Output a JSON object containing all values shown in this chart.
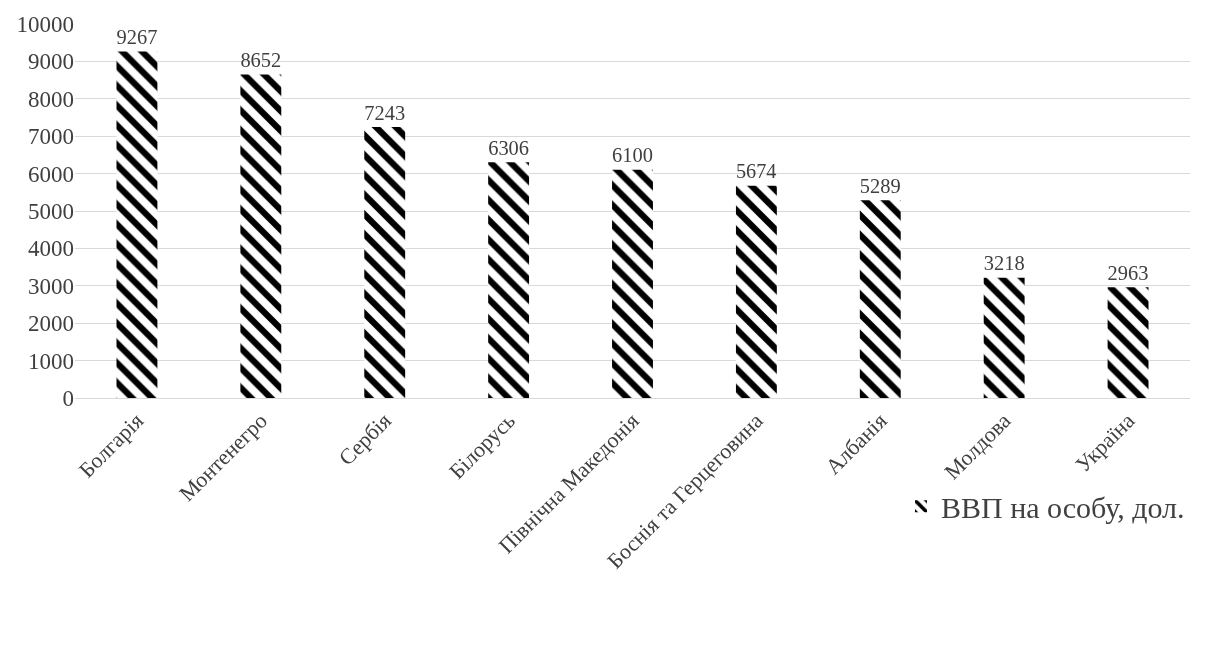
{
  "chart_data": {
    "type": "bar",
    "categories": [
      "Болгарія",
      "Монтенегро",
      "Сербія",
      "Білорусь",
      "Північна Македонія",
      "Боснія та Герцеговина",
      "Албанія",
      "Молдова",
      "Україна"
    ],
    "series": [
      {
        "name": "ВВП на особу, дол.",
        "color": "#000000",
        "values": [
          9267,
          8652,
          7243,
          6306,
          6100,
          5674,
          5289,
          3218,
          2963
        ]
      }
    ],
    "ylim": [
      0,
      10000
    ],
    "yticks": [
      0,
      1000,
      2000,
      3000,
      4000,
      5000,
      6000,
      7000,
      8000,
      9000,
      10000
    ],
    "grid": "y",
    "legend": "bottom right",
    "data_labels": true
  }
}
